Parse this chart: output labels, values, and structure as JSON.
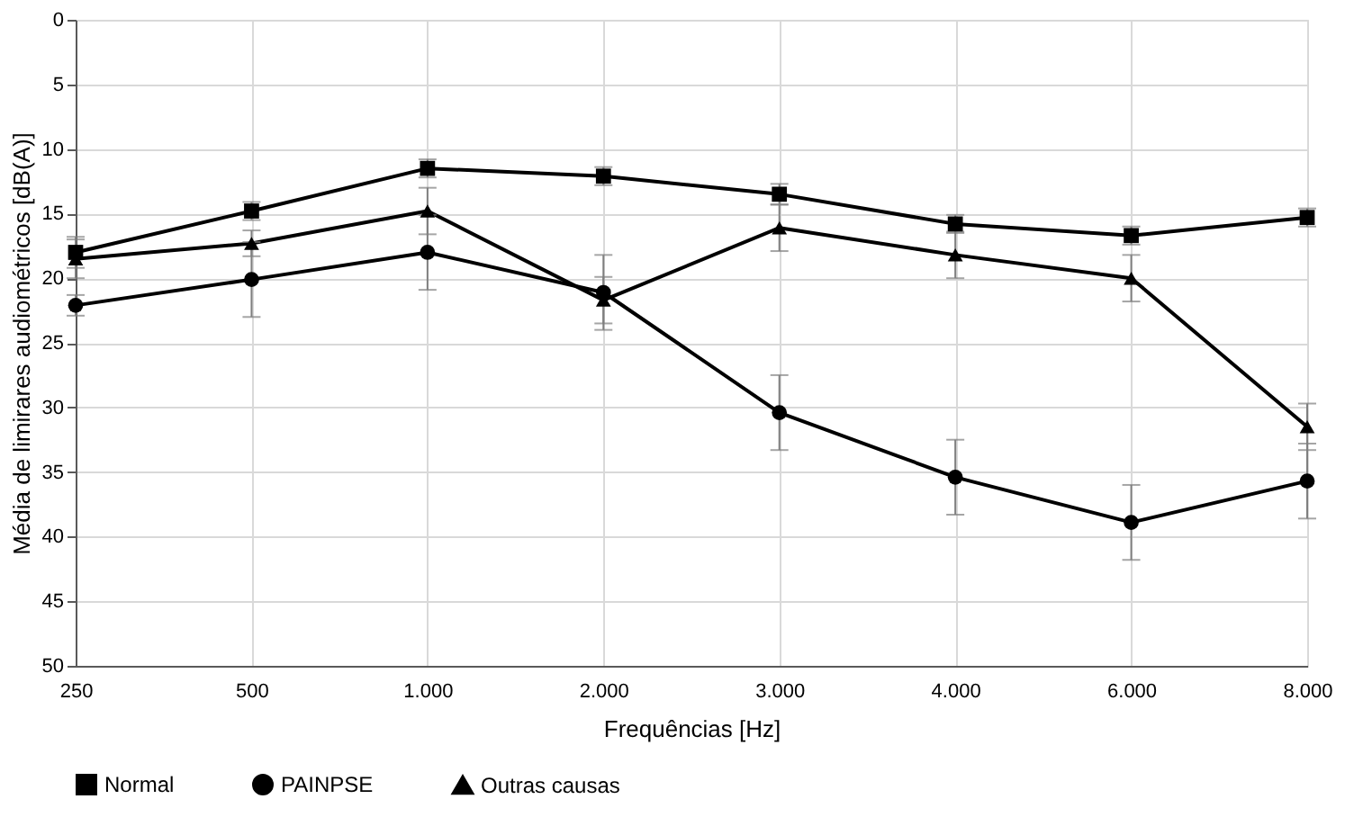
{
  "chart_data": {
    "type": "line",
    "xlabel": "Frequências [Hz]",
    "ylabel": "Média de limirares audiométricos [dB(A)]",
    "categories": [
      "250",
      "500",
      "1.000",
      "2.000",
      "3.000",
      "4.000",
      "6.000",
      "8.000"
    ],
    "series": [
      {
        "name": "Normal",
        "color": "#000000",
        "marker": "square",
        "values": [
          18.0,
          14.8,
          11.5,
          12.1,
          13.5,
          15.8,
          16.7,
          15.3
        ],
        "errors": [
          1.2,
          0.7,
          0.7,
          0.7,
          0.8,
          0.7,
          0.7,
          0.7
        ]
      },
      {
        "name": "PAINPSE",
        "color": "#000000",
        "marker": "circle",
        "values": [
          22.1,
          20.1,
          18.0,
          21.1,
          30.4,
          35.4,
          38.9,
          35.7
        ],
        "errors": [
          0.8,
          2.9,
          2.9,
          2.9,
          2.9,
          2.9,
          2.9,
          2.9
        ]
      },
      {
        "name": "Outras causas",
        "color": "#000000",
        "marker": "triangle",
        "values": [
          18.5,
          17.3,
          14.8,
          21.7,
          16.1,
          18.2,
          20.0,
          31.5
        ],
        "errors": [
          1.5,
          1.0,
          1.8,
          1.8,
          1.8,
          1.8,
          1.8,
          1.8
        ]
      }
    ],
    "ylim": [
      50,
      0
    ],
    "yticks": [
      0,
      5,
      10,
      15,
      20,
      25,
      30,
      35,
      40,
      45,
      50
    ],
    "grid": true,
    "legend": "bottom",
    "line_style": "solid"
  }
}
